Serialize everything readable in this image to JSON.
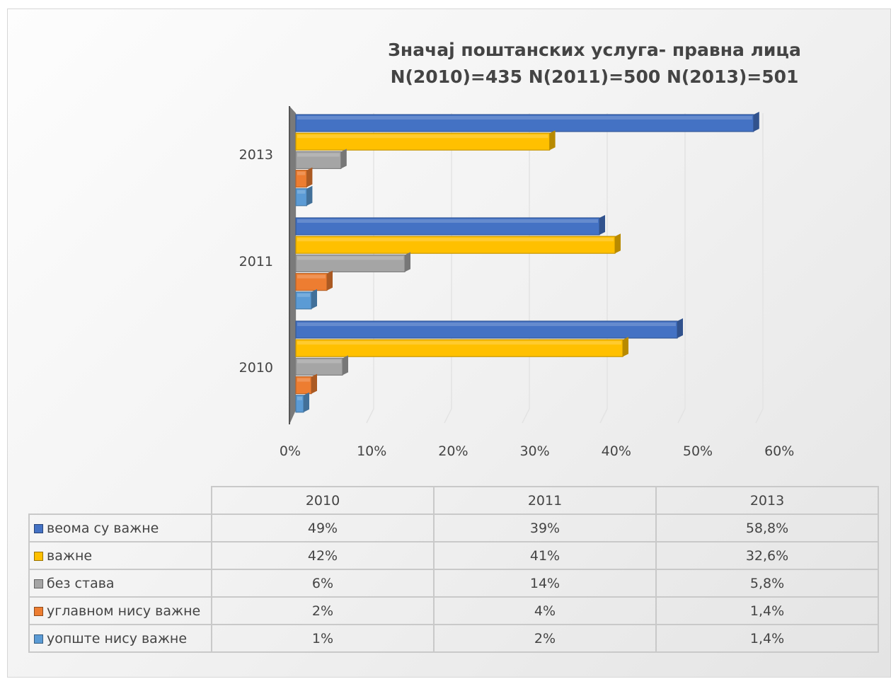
{
  "chart_data": {
    "type": "bar",
    "orientation": "horizontal",
    "title": [
      "Значај поштанских услуга- правна лица",
      "N(2010)=435  N(2011)=500  N(2013)=501"
    ],
    "categories": [
      "2010",
      "2011",
      "2013"
    ],
    "series": [
      {
        "name": "веома су важне",
        "color": "#4472c4",
        "values": [
          49,
          39,
          58.8
        ],
        "labels": [
          "49%",
          "39%",
          "58,8%"
        ]
      },
      {
        "name": "важне",
        "color": "#ffc000",
        "values": [
          42,
          41,
          32.6
        ],
        "labels": [
          "42%",
          "41%",
          "32,6%"
        ]
      },
      {
        "name": "без става",
        "color": "#a5a5a5",
        "values": [
          6,
          14,
          5.8
        ],
        "labels": [
          "6%",
          "14%",
          "5,8%"
        ]
      },
      {
        "name": "углавном нису важне",
        "color": "#ed7d31",
        "values": [
          2,
          4,
          1.4
        ],
        "labels": [
          "2%",
          "4%",
          "1,4%"
        ]
      },
      {
        "name": "уопште нису важне",
        "color": "#5b9bd5",
        "values": [
          1,
          2,
          1.4
        ],
        "labels": [
          "1%",
          "2%",
          "1,4%"
        ]
      }
    ],
    "xlim": [
      0,
      60
    ],
    "x_ticks": [
      "0%",
      "10%",
      "20%",
      "30%",
      "40%",
      "50%",
      "60%"
    ],
    "grid": true,
    "legend": "data-table"
  }
}
